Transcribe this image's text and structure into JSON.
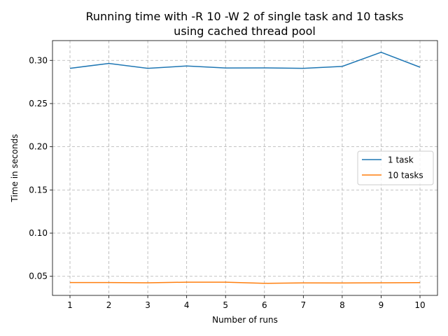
{
  "chart_data": {
    "type": "line",
    "title_line1": "Running time with -R 10 -W 2 of single task and 10 tasks",
    "title_line2": "using cached thread pool",
    "xlabel": "Number of runs",
    "ylabel": "Time in seconds",
    "x": [
      1,
      2,
      3,
      4,
      5,
      6,
      7,
      8,
      9,
      10
    ],
    "xlim": [
      0.55,
      10.45
    ],
    "ylim": [
      0.0279,
      0.3229
    ],
    "x_ticks": [
      "1",
      "2",
      "3",
      "4",
      "5",
      "6",
      "7",
      "8",
      "9",
      "10"
    ],
    "y_ticks": [
      {
        "value": 0.05,
        "label": "0.05"
      },
      {
        "value": 0.1,
        "label": "0.10"
      },
      {
        "value": 0.15,
        "label": "0.15"
      },
      {
        "value": 0.2,
        "label": "0.20"
      },
      {
        "value": 0.25,
        "label": "0.25"
      },
      {
        "value": 0.3,
        "label": "0.30"
      }
    ],
    "grid": true,
    "legend_position": "center-right",
    "series": [
      {
        "name": "1 task",
        "color": "#1f77b4",
        "values": [
          0.2908,
          0.2965,
          0.2908,
          0.2935,
          0.2912,
          0.2913,
          0.2908,
          0.293,
          0.3094,
          0.2921
        ]
      },
      {
        "name": "10 tasks",
        "color": "#ff7f0e",
        "values": [
          0.0428,
          0.0428,
          0.0425,
          0.0432,
          0.0432,
          0.0419,
          0.0424,
          0.0423,
          0.0425,
          0.0427
        ]
      }
    ]
  }
}
